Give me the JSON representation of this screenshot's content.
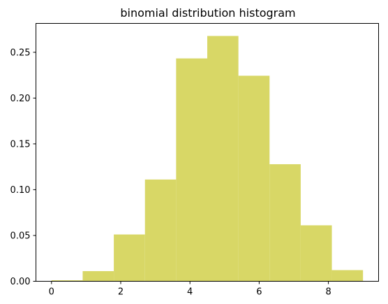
{
  "chart_data": {
    "type": "bar",
    "title": "binomial distribution histogram",
    "xlabel": "",
    "ylabel": "",
    "bar_color": "#d8d766",
    "xlim": [
      -0.45,
      9.45
    ],
    "ylim": [
      0,
      0.2815
    ],
    "grid": false,
    "bins": [
      {
        "x0": 0.0,
        "x1": 0.9,
        "value": 0.0011
      },
      {
        "x0": 0.9,
        "x1": 1.8,
        "value": 0.0111
      },
      {
        "x0": 1.8,
        "x1": 2.7,
        "value": 0.0511
      },
      {
        "x0": 2.7,
        "x1": 3.6,
        "value": 0.1111
      },
      {
        "x0": 3.6,
        "x1": 4.5,
        "value": 0.2433
      },
      {
        "x0": 4.5,
        "x1": 5.4,
        "value": 0.2678
      },
      {
        "x0": 5.4,
        "x1": 6.3,
        "value": 0.2244
      },
      {
        "x0": 6.3,
        "x1": 7.2,
        "value": 0.1278
      },
      {
        "x0": 7.2,
        "x1": 8.1,
        "value": 0.0611
      },
      {
        "x0": 8.1,
        "x1": 9.0,
        "value": 0.0122
      }
    ],
    "x_ticks": [
      {
        "value": 0,
        "label": "0"
      },
      {
        "value": 2,
        "label": "2"
      },
      {
        "value": 4,
        "label": "4"
      },
      {
        "value": 6,
        "label": "6"
      },
      {
        "value": 8,
        "label": "8"
      }
    ],
    "y_ticks": [
      {
        "value": 0.0,
        "label": "0.00"
      },
      {
        "value": 0.05,
        "label": "0.05"
      },
      {
        "value": 0.1,
        "label": "0.10"
      },
      {
        "value": 0.15,
        "label": "0.15"
      },
      {
        "value": 0.2,
        "label": "0.20"
      },
      {
        "value": 0.25,
        "label": "0.25"
      }
    ]
  }
}
